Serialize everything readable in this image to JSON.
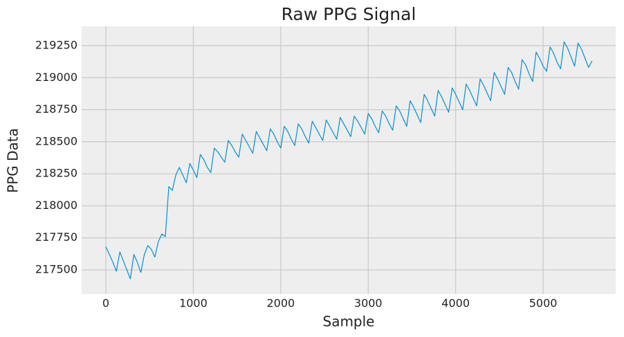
{
  "chart_data": {
    "type": "line",
    "title": "Raw PPG Signal",
    "x_label": "Sample",
    "y_label": "PPG Data",
    "x": [
      0,
      40,
      80,
      120,
      160,
      200,
      240,
      280,
      320,
      360,
      400,
      440,
      480,
      520,
      560,
      600,
      640,
      680,
      720,
      760,
      800,
      840,
      880,
      920,
      960,
      1000,
      1040,
      1080,
      1120,
      1160,
      1200,
      1240,
      1280,
      1320,
      1360,
      1400,
      1440,
      1480,
      1520,
      1560,
      1600,
      1640,
      1680,
      1720,
      1760,
      1800,
      1840,
      1880,
      1920,
      1960,
      2000,
      2040,
      2080,
      2120,
      2160,
      2200,
      2240,
      2280,
      2320,
      2360,
      2400,
      2440,
      2480,
      2520,
      2560,
      2600,
      2640,
      2680,
      2720,
      2760,
      2800,
      2840,
      2880,
      2920,
      2960,
      3000,
      3040,
      3080,
      3120,
      3160,
      3200,
      3240,
      3280,
      3320,
      3360,
      3400,
      3440,
      3480,
      3520,
      3560,
      3600,
      3640,
      3680,
      3720,
      3760,
      3800,
      3840,
      3880,
      3920,
      3960,
      4000,
      4040,
      4080,
      4120,
      4160,
      4200,
      4240,
      4280,
      4320,
      4360,
      4400,
      4440,
      4480,
      4520,
      4560,
      4600,
      4640,
      4680,
      4720,
      4760,
      4800,
      4840,
      4880,
      4920,
      4960,
      5000,
      5040,
      5080,
      5120,
      5160,
      5200,
      5240,
      5280,
      5320,
      5360,
      5400,
      5440,
      5480,
      5520,
      5560
    ],
    "series": [
      {
        "name": "PPG",
        "color": "#008fd5",
        "values": [
          217680,
          217620,
          217560,
          217490,
          217640,
          217570,
          217500,
          217430,
          217620,
          217560,
          217480,
          217620,
          217690,
          217660,
          217600,
          217720,
          217780,
          217760,
          218150,
          218120,
          218240,
          218300,
          218240,
          218180,
          218330,
          218280,
          218220,
          218400,
          218360,
          218300,
          218260,
          218450,
          218420,
          218380,
          218340,
          218510,
          218470,
          218420,
          218380,
          218560,
          218510,
          218460,
          218410,
          218580,
          218530,
          218480,
          218430,
          218600,
          218560,
          218500,
          218450,
          218620,
          218580,
          218520,
          218470,
          218640,
          218600,
          218540,
          218490,
          218660,
          218610,
          218560,
          218510,
          218670,
          218620,
          218570,
          218520,
          218690,
          218640,
          218590,
          218540,
          218700,
          218660,
          218610,
          218560,
          218720,
          218680,
          218620,
          218570,
          218740,
          218700,
          218640,
          218590,
          218780,
          218740,
          218680,
          218620,
          218820,
          218770,
          218710,
          218650,
          218870,
          218820,
          218760,
          218700,
          218900,
          218850,
          218790,
          218730,
          218920,
          218870,
          218810,
          218750,
          218950,
          218900,
          218840,
          218780,
          218990,
          218940,
          218880,
          218820,
          219040,
          218990,
          218930,
          218870,
          219080,
          219040,
          218970,
          218910,
          219140,
          219100,
          219030,
          218970,
          219200,
          219150,
          219090,
          219050,
          219240,
          219190,
          219120,
          219070,
          219280,
          219230,
          219160,
          219090,
          219270,
          219220,
          219150,
          219080,
          219130
        ]
      }
    ],
    "xlim": [
      -277,
      5830
    ],
    "ylim": [
      217311,
      219401
    ],
    "xticks": [
      0,
      1000,
      2000,
      3000,
      4000,
      5000
    ],
    "yticks": [
      217500,
      217750,
      218000,
      218250,
      218500,
      218750,
      219000,
      219250
    ],
    "grid": true
  }
}
